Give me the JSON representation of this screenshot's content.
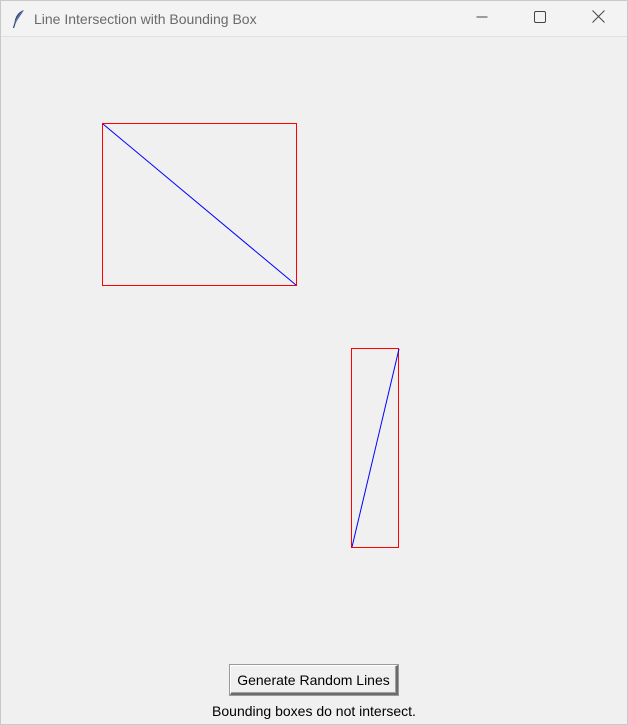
{
  "window": {
    "title": "Line Intersection with Bounding Box",
    "icon": "feather-icon"
  },
  "controls": {
    "minimize_icon": "minimize-icon",
    "maximize_icon": "maximize-icon",
    "close_icon": "close-icon"
  },
  "canvas": {
    "line_color": "#0000ff",
    "box_color": "#ff0000",
    "background": "#f0f0f0"
  },
  "actions": {
    "generate_label": "Generate Random Lines"
  },
  "status": {
    "message": "Bounding boxes do not intersect."
  }
}
